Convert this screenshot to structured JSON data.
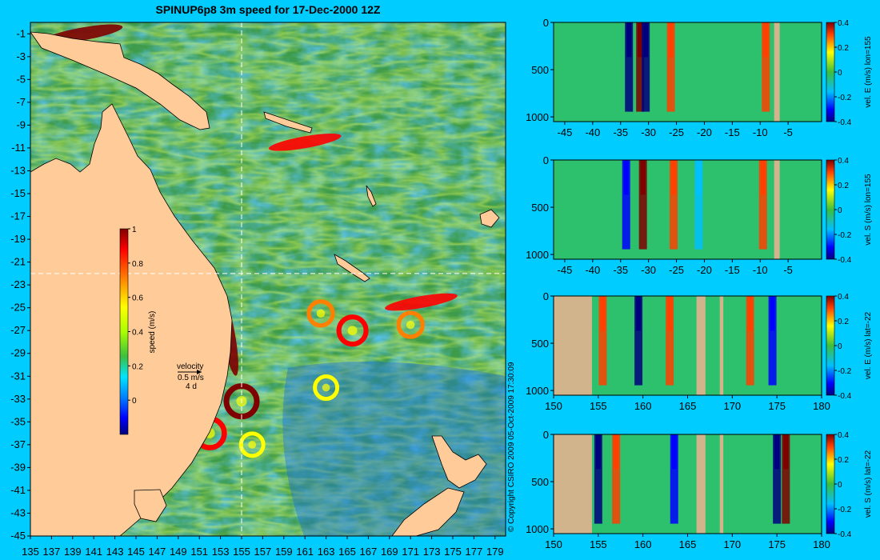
{
  "title": "SPINUP6p8 3m speed for 17-Dec-2000 12Z",
  "copyright": "© Copyright CSIRO 2009   05-Oct-2009 17:30:09",
  "colors": {
    "background": "#00ccff",
    "land": "#ffcc99",
    "section_land": "#d2b48c",
    "ocean_base": "#3d9b4a",
    "guide_line": "#ffffff"
  },
  "chart_data": [
    {
      "type": "heatmap",
      "name": "map",
      "title": "SPINUP6p8 3m speed for 17-Dec-2000 12Z",
      "xlim": [
        135,
        180
      ],
      "ylim": [
        -45,
        0
      ],
      "xticks": [
        135,
        137,
        139,
        141,
        143,
        145,
        147,
        149,
        151,
        153,
        155,
        157,
        159,
        161,
        163,
        165,
        167,
        169,
        171,
        173,
        175,
        177,
        179
      ],
      "yticks": [
        -1,
        -3,
        -5,
        -7,
        -9,
        -11,
        -13,
        -15,
        -17,
        -19,
        -21,
        -23,
        -25,
        -27,
        -29,
        -31,
        -33,
        -35,
        -37,
        -39,
        -41,
        -43,
        -45
      ],
      "guide_lon": 155,
      "guide_lat": -22,
      "colorbar": {
        "label": "speed (m/s)",
        "range": [
          -0.2,
          1
        ],
        "ticks": [
          1,
          0.8,
          0.6,
          0.4,
          0.2,
          0
        ],
        "colors": [
          "#00007f",
          "#0000ff",
          "#0080ff",
          "#00e5ff",
          "#3dbf3d",
          "#aaff00",
          "#ffff00",
          "#ff8000",
          "#ff0000",
          "#7f0000"
        ]
      },
      "velocity_key": {
        "title": "velocity",
        "speed": "0.5 m/s",
        "period": "4 d"
      },
      "features": [
        {
          "kind": "eddy",
          "lon": 155.0,
          "lat": -33.2,
          "strength": 1.0
        },
        {
          "kind": "eddy",
          "lon": 152.0,
          "lat": -36.0,
          "strength": 0.9
        },
        {
          "kind": "eddy",
          "lon": 165.5,
          "lat": -27.0,
          "strength": 0.8
        },
        {
          "kind": "eddy",
          "lon": 162.5,
          "lat": -25.5,
          "strength": 0.6
        },
        {
          "kind": "eddy",
          "lon": 171.0,
          "lat": -26.5,
          "strength": 0.6
        },
        {
          "kind": "eddy",
          "lon": 163.0,
          "lat": -32.0,
          "strength": 0.5
        },
        {
          "kind": "eddy",
          "lon": 156.0,
          "lat": -37.0,
          "strength": 0.5
        },
        {
          "kind": "current",
          "lon": 153.8,
          "lat": -27.5,
          "strength": 1.0
        },
        {
          "kind": "current",
          "lon": 140.0,
          "lat": -1.0,
          "strength": 1.0
        },
        {
          "kind": "current",
          "lon": 161.0,
          "lat": -10.5,
          "strength": 0.8
        },
        {
          "kind": "current",
          "lon": 172.0,
          "lat": -24.5,
          "strength": 0.8
        }
      ]
    },
    {
      "type": "heatmap",
      "name": "section-1",
      "ylabel": "vel. E (m/s) lon=155",
      "x_axis": "latitude",
      "xlim": [
        -47,
        1
      ],
      "xticks": [
        -45,
        -40,
        -35,
        -30,
        -25,
        -20,
        -15,
        -10,
        -5
      ],
      "yticks": [
        0,
        500,
        1000
      ],
      "ylim": [
        1050,
        0
      ],
      "colorbar_ticks": [
        0.4,
        0.2,
        0,
        -0.2,
        -0.4
      ],
      "colorbar_range": [
        -0.4,
        0.4
      ],
      "features": [
        {
          "x": -33.5,
          "value": -0.4
        },
        {
          "x": -31.5,
          "value": 0.5
        },
        {
          "x": -30.5,
          "value": -0.4
        },
        {
          "x": -26.0,
          "value": 0.3
        },
        {
          "x": -9.0,
          "value": 0.3
        }
      ],
      "land": [
        [
          -7.5,
          -6.5
        ]
      ]
    },
    {
      "type": "heatmap",
      "name": "section-2",
      "ylabel": "vel. S (m/s) lon=155",
      "x_axis": "latitude",
      "xlim": [
        -47,
        1
      ],
      "xticks": [
        -45,
        -40,
        -35,
        -30,
        -25,
        -20,
        -15,
        -10,
        -5
      ],
      "yticks": [
        0,
        500,
        1000
      ],
      "ylim": [
        1050,
        0
      ],
      "colorbar_ticks": [
        0.4,
        0.2,
        0,
        -0.2,
        -0.4
      ],
      "colorbar_range": [
        -0.4,
        0.4
      ],
      "features": [
        {
          "x": -34.0,
          "value": -0.3
        },
        {
          "x": -31.0,
          "value": 0.35
        },
        {
          "x": -25.5,
          "value": 0.3
        },
        {
          "x": -21.0,
          "value": -0.2
        },
        {
          "x": -9.5,
          "value": 0.25
        }
      ],
      "land": [
        [
          -7.5,
          -6.5
        ]
      ]
    },
    {
      "type": "heatmap",
      "name": "section-3",
      "ylabel": "vel. E (m/s) lat=-22",
      "x_axis": "longitude",
      "xlim": [
        150,
        180
      ],
      "xticks": [
        150,
        155,
        160,
        165,
        170,
        175,
        180
      ],
      "yticks": [
        0,
        500,
        1000
      ],
      "ylim": [
        1050,
        0
      ],
      "colorbar_ticks": [
        0.4,
        0.2,
        0,
        -0.2,
        -0.4
      ],
      "colorbar_range": [
        -0.4,
        0.4
      ],
      "features": [
        {
          "x": 155.5,
          "value": 0.3
        },
        {
          "x": 159.5,
          "value": -0.35
        },
        {
          "x": 163.0,
          "value": 0.3
        },
        {
          "x": 172.0,
          "value": 0.3
        },
        {
          "x": 174.5,
          "value": -0.25
        }
      ],
      "land": [
        [
          150,
          154.3
        ],
        [
          166,
          167
        ],
        [
          168.6,
          169
        ]
      ]
    },
    {
      "type": "heatmap",
      "name": "section-4",
      "ylabel": "vel. S (m/s) lat=-22",
      "x_axis": "longitude",
      "xlim": [
        150,
        180
      ],
      "xticks": [
        150,
        155,
        160,
        165,
        170,
        175,
        180
      ],
      "yticks": [
        0,
        500,
        1000
      ],
      "ylim": [
        1050,
        0
      ],
      "colorbar_ticks": [
        0.4,
        0.2,
        0,
        -0.2,
        -0.4
      ],
      "colorbar_range": [
        -0.4,
        0.4
      ],
      "features": [
        {
          "x": 155.0,
          "value": -0.4
        },
        {
          "x": 157.0,
          "value": 0.3
        },
        {
          "x": 163.5,
          "value": -0.3
        },
        {
          "x": 175.0,
          "value": -0.4
        },
        {
          "x": 176.0,
          "value": 0.4
        }
      ],
      "land": [
        [
          150,
          154.3
        ],
        [
          166,
          167
        ],
        [
          168.6,
          169
        ]
      ]
    }
  ]
}
